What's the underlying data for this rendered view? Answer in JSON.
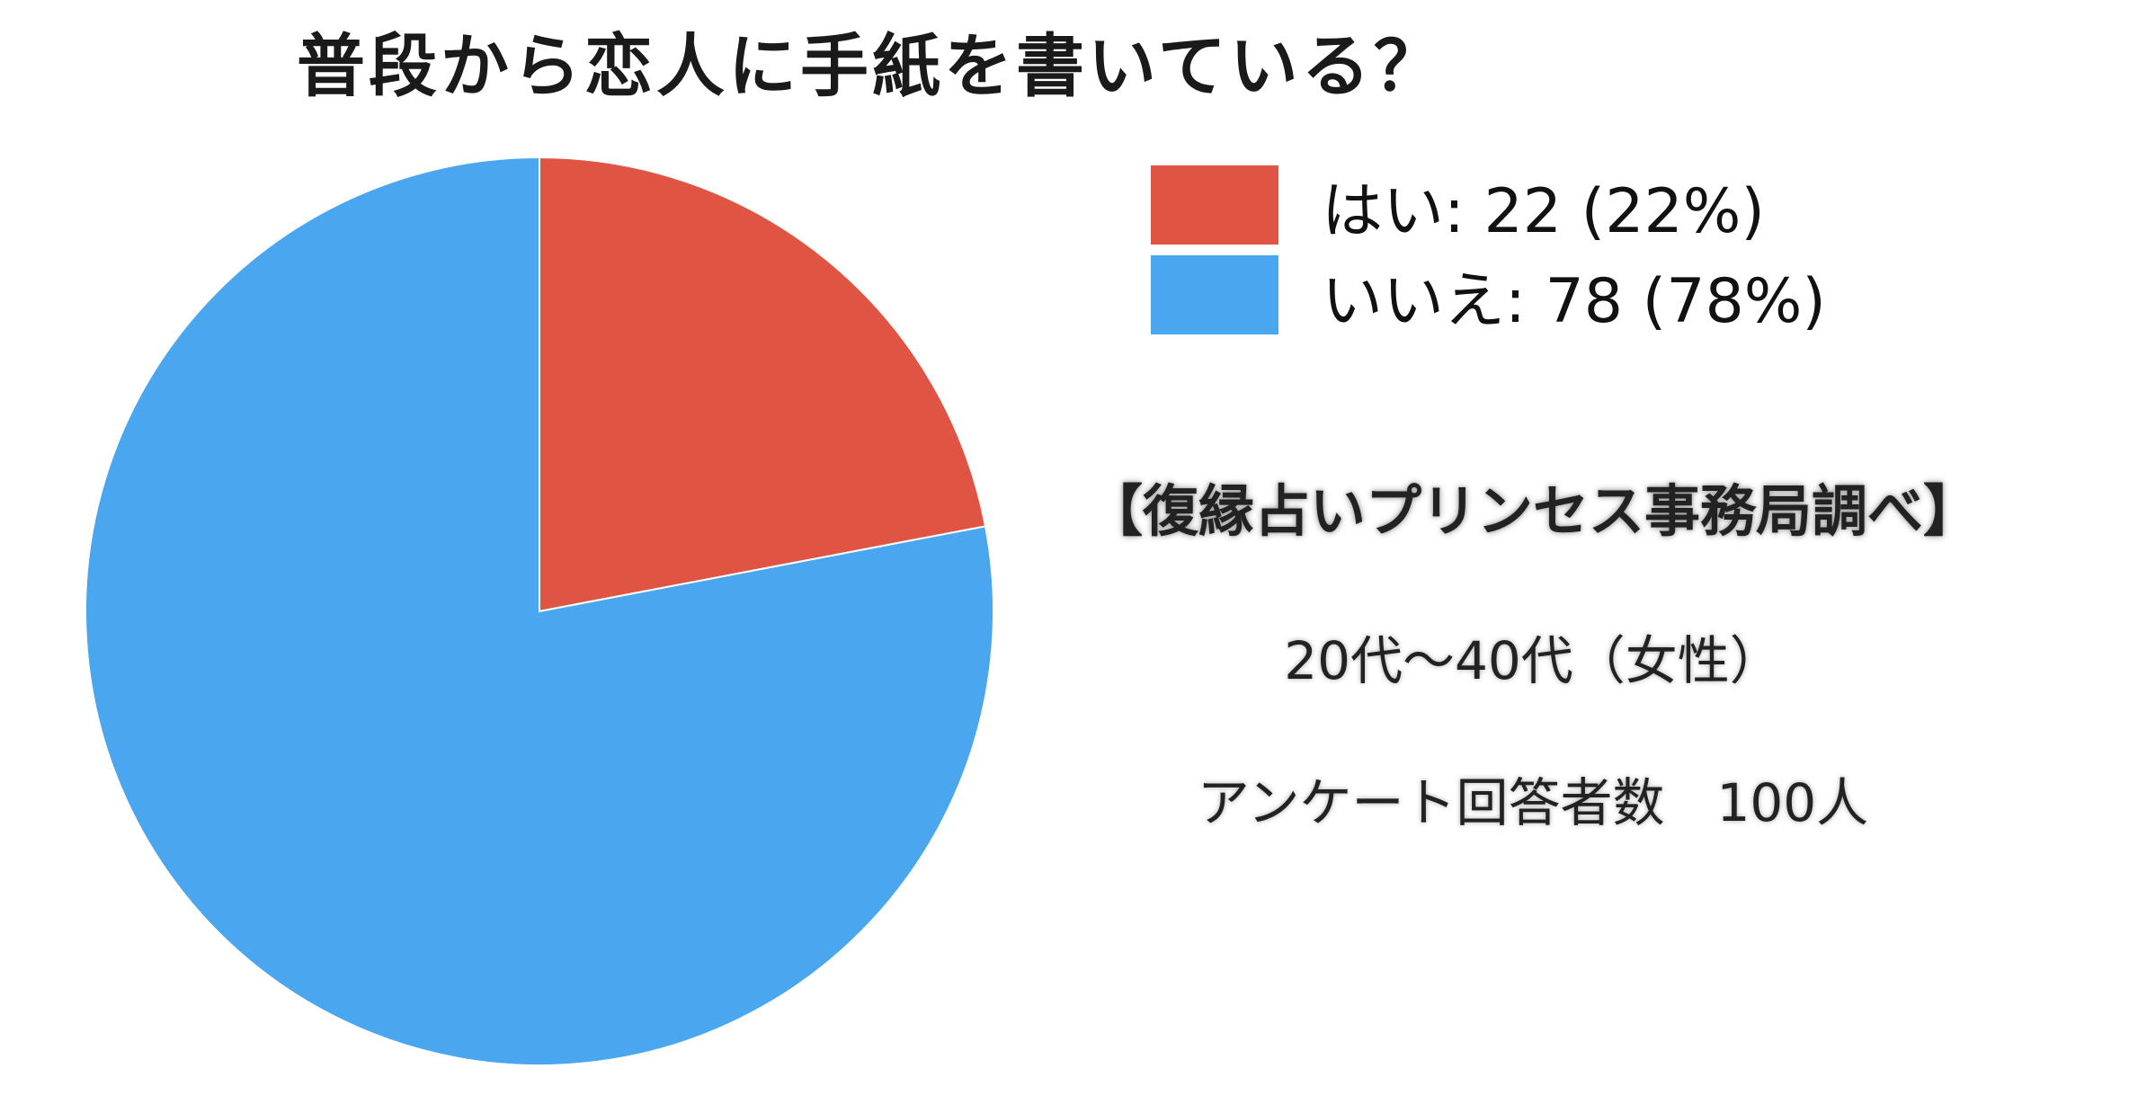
{
  "title": "普段から恋人に手紙を書いている？",
  "legend": [
    {
      "label": "はい: 22 (22%)",
      "color": "#E05444"
    },
    {
      "label": "いいえ: 78 (78%)",
      "color": "#4AA6EE"
    }
  ],
  "source": "【復縁占いプリンセス事務局調べ】",
  "demographic": "20代〜40代（女性）",
  "respondents": "アンケート回答者数　100人",
  "chart_data": {
    "type": "pie",
    "title": "普段から恋人に手紙を書いている？",
    "categories": [
      "はい",
      "いいえ"
    ],
    "values": [
      22,
      78
    ],
    "percentages": [
      22,
      78
    ],
    "colors": [
      "#E05444",
      "#4AA6EE"
    ],
    "legend_position": "top-right"
  }
}
